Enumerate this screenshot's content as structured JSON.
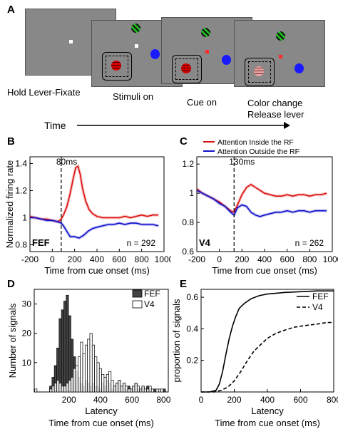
{
  "panel_a": {
    "letter": "A",
    "labels": [
      "Hold Lever-Fixate",
      "Stimuli on",
      "Cue on",
      "Color change",
      "Release lever"
    ],
    "time_label": "Time",
    "colors": {
      "screen": "#888888",
      "fix_white": "#ffffff",
      "fix_red": "#ff2a2a",
      "blue_stim": "#1a1aff",
      "green_stim": "#22bb22",
      "red_stim": "#dd0000",
      "pink_stim": "#e8a0a0"
    }
  },
  "chart_data": [
    {
      "panel": "B",
      "type": "line",
      "xlabel": "Time from cue onset (ms)",
      "ylabel": "Normalized firing rate",
      "xlim": [
        -200,
        1000
      ],
      "ylim": [
        0.75,
        1.45
      ],
      "xticks": [
        -200,
        0,
        200,
        400,
        600,
        800,
        1000
      ],
      "yticks": [
        0.8,
        1,
        1.2,
        1.4
      ],
      "yticklabels": [
        "0.8",
        "1",
        "1.2",
        "1.4"
      ],
      "vline": 80,
      "vline_label": "80ms",
      "area_label": "FEF",
      "n_label": "n = 292",
      "series": [
        {
          "name": "Attention Inside the RF",
          "color": "#dd1111",
          "x": [
            -200,
            -150,
            -100,
            -50,
            0,
            50,
            80,
            100,
            130,
            160,
            190,
            210,
            230,
            250,
            270,
            300,
            330,
            360,
            400,
            450,
            500,
            550,
            600,
            650,
            700,
            750,
            800,
            850,
            900,
            950
          ],
          "y": [
            1.01,
            1.0,
            0.99,
            0.99,
            0.98,
            0.97,
            0.99,
            1.02,
            1.08,
            1.18,
            1.3,
            1.37,
            1.38,
            1.32,
            1.22,
            1.12,
            1.06,
            1.03,
            1.01,
            1.0,
            1.0,
            1.0,
            1.0,
            1.01,
            1.0,
            1.01,
            1.02,
            1.01,
            1.02,
            1.02
          ]
        },
        {
          "name": "Attention Outside the RF",
          "color": "#1111cc",
          "x": [
            -200,
            -150,
            -100,
            -50,
            0,
            50,
            80,
            100,
            130,
            160,
            200,
            240,
            280,
            320,
            360,
            400,
            450,
            500,
            550,
            600,
            650,
            700,
            750,
            800,
            850,
            900,
            950
          ],
          "y": [
            1.0,
            1.0,
            0.99,
            0.98,
            0.98,
            0.97,
            0.96,
            0.94,
            0.9,
            0.86,
            0.86,
            0.85,
            0.87,
            0.9,
            0.92,
            0.93,
            0.94,
            0.95,
            0.95,
            0.96,
            0.95,
            0.96,
            0.96,
            0.95,
            0.95,
            0.95,
            0.94
          ]
        }
      ]
    },
    {
      "panel": "C",
      "type": "line",
      "xlabel": "Time from cue onset (ms)",
      "ylabel": "",
      "xlim": [
        -200,
        1000
      ],
      "ylim": [
        0.6,
        1.25
      ],
      "xticks": [
        -200,
        0,
        200,
        400,
        600,
        800,
        1000
      ],
      "yticks": [
        0.6,
        0.8,
        1,
        1.2
      ],
      "yticklabels": [
        "0.6",
        "0.8",
        "1",
        "1.2"
      ],
      "vline": 130,
      "vline_label": "130ms",
      "area_label": "V4",
      "n_label": "n = 262",
      "series": [
        {
          "name": "Attention Inside the RF",
          "color": "#dd1111",
          "x": [
            -200,
            -150,
            -100,
            -50,
            0,
            50,
            100,
            130,
            160,
            200,
            240,
            280,
            320,
            360,
            400,
            450,
            500,
            550,
            600,
            650,
            700,
            750,
            800,
            850,
            900,
            950
          ],
          "y": [
            1.03,
            1.0,
            0.98,
            0.96,
            0.94,
            0.91,
            0.88,
            0.87,
            0.92,
            0.99,
            1.04,
            1.06,
            1.04,
            1.02,
            1.0,
            0.99,
            0.98,
            0.98,
            0.99,
            0.98,
            0.99,
            0.99,
            0.98,
            0.99,
            0.99,
            1.0
          ]
        },
        {
          "name": "Attention Outside the RF",
          "color": "#1111cc",
          "x": [
            -200,
            -150,
            -100,
            -50,
            0,
            50,
            100,
            130,
            160,
            200,
            240,
            280,
            320,
            360,
            400,
            450,
            500,
            550,
            600,
            650,
            700,
            750,
            800,
            850,
            900,
            950
          ],
          "y": [
            1.02,
            1.0,
            0.98,
            0.96,
            0.93,
            0.91,
            0.87,
            0.85,
            0.9,
            0.92,
            0.91,
            0.87,
            0.85,
            0.84,
            0.85,
            0.86,
            0.87,
            0.87,
            0.88,
            0.87,
            0.88,
            0.88,
            0.87,
            0.88,
            0.88,
            0.88
          ]
        }
      ]
    },
    {
      "panel": "D",
      "type": "bar",
      "xlabel": "Latency",
      "xlabel2": "Time from cue onset (ms)",
      "ylabel": "Number of signals",
      "xlim": [
        -20,
        830
      ],
      "ylim": [
        0,
        35
      ],
      "xticks": [
        200,
        400,
        600,
        800
      ],
      "yticks": [
        10,
        20,
        30
      ],
      "bin_width": 15,
      "series": [
        {
          "name": "FEF",
          "color": "#444444",
          "x": [
            85,
            100,
            115,
            130,
            145,
            160,
            175,
            190,
            205,
            220,
            235,
            250,
            265,
            280,
            295,
            310,
            325,
            340,
            355,
            370,
            385,
            400,
            415,
            430,
            445,
            460,
            475,
            490,
            505,
            520,
            535,
            550,
            565,
            580,
            595,
            610,
            625,
            640,
            655,
            670,
            685,
            700,
            715,
            730,
            745,
            760,
            775,
            790,
            805
          ],
          "values": [
            2,
            5,
            9,
            15,
            25,
            28,
            31,
            33,
            26,
            18,
            12,
            7,
            5,
            3,
            2,
            4,
            3,
            2,
            3,
            2,
            2,
            1,
            3,
            2,
            4,
            3,
            1,
            2,
            3,
            4,
            2,
            3,
            1,
            2,
            1,
            2,
            3,
            1,
            1,
            2,
            0,
            2,
            1,
            0,
            1,
            0,
            1,
            0,
            1
          ]
        },
        {
          "name": "V4",
          "color": "#ffffff",
          "x": [
            -10,
            85,
            100,
            115,
            130,
            145,
            160,
            175,
            190,
            205,
            220,
            235,
            250,
            265,
            280,
            295,
            310,
            325,
            340,
            355,
            370,
            385,
            400,
            415,
            430,
            445,
            460,
            475,
            490,
            505,
            520,
            535,
            550,
            565,
            580,
            595,
            610,
            625,
            640,
            655,
            670,
            685,
            700,
            715,
            730,
            745,
            760,
            775,
            790
          ],
          "values": [
            1,
            1,
            2,
            3,
            4,
            3,
            2,
            2,
            3,
            4,
            5,
            8,
            9,
            12,
            17,
            13,
            16,
            18,
            20,
            16,
            12,
            10,
            8,
            6,
            5,
            6,
            7,
            4,
            2,
            3,
            4,
            2,
            3,
            2,
            1,
            1,
            2,
            3,
            2,
            1,
            2,
            1,
            1,
            2,
            1,
            0,
            1,
            1,
            1
          ]
        }
      ]
    },
    {
      "panel": "E",
      "type": "line",
      "xlabel": "Latency",
      "xlabel2": "Time from cue onset (ms)",
      "ylabel": "proportion of signals",
      "xlim": [
        0,
        800
      ],
      "ylim": [
        0,
        0.65
      ],
      "xticks": [
        0,
        200,
        400,
        600,
        800
      ],
      "yticks": [
        0.2,
        0.4,
        0.6
      ],
      "yticklabels": [
        "0.2",
        "0.4",
        "0.6"
      ],
      "series": [
        {
          "name": "FEF",
          "color": "#000000",
          "dash": false,
          "x": [
            0,
            50,
            90,
            110,
            130,
            150,
            170,
            190,
            210,
            230,
            260,
            300,
            350,
            400,
            500,
            600,
            700,
            800
          ],
          "y": [
            0,
            0,
            0.01,
            0.05,
            0.13,
            0.24,
            0.34,
            0.42,
            0.48,
            0.53,
            0.56,
            0.59,
            0.61,
            0.62,
            0.63,
            0.635,
            0.64,
            0.64
          ]
        },
        {
          "name": "V4",
          "color": "#000000",
          "dash": true,
          "x": [
            0,
            80,
            120,
            160,
            200,
            240,
            280,
            320,
            360,
            400,
            450,
            500,
            560,
            620,
            700,
            760,
            800
          ],
          "y": [
            0,
            0,
            0.01,
            0.03,
            0.07,
            0.13,
            0.2,
            0.26,
            0.3,
            0.34,
            0.37,
            0.39,
            0.41,
            0.42,
            0.43,
            0.44,
            0.44
          ]
        }
      ]
    }
  ]
}
